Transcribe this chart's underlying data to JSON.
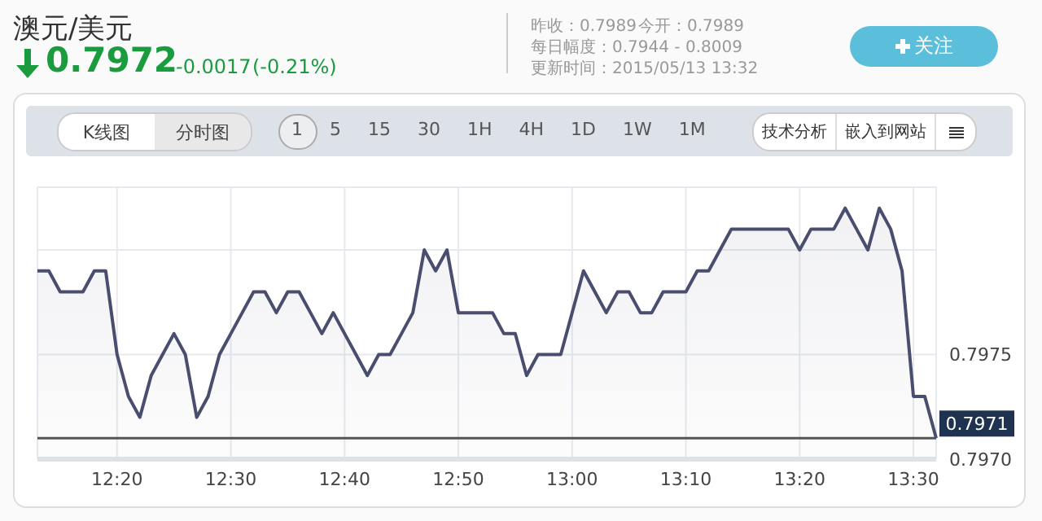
{
  "chart_data": {
    "type": "area",
    "title": "澳元/美元",
    "annotations": [
      "0.7972",
      "-0.0017",
      "(-0.21%)",
      "昨收：0.7989",
      "今开：0.7989",
      "每日幅度：0.7944 - 0.8009",
      "更新时间：2015/05/13 13:32",
      "关注",
      "K线图",
      "分时图",
      "1 5 15 30 1H 4H 1D 1W 1M",
      "技术分析",
      "嵌入到网站"
    ],
    "categories": [
      null,
      null,
      null,
      null,
      null,
      null,
      null,
      "12:20",
      null,
      null,
      null,
      null,
      null,
      null,
      null,
      null,
      null,
      "12:30",
      null,
      null,
      null,
      null,
      null,
      null,
      null,
      null,
      null,
      "12:40",
      null,
      null,
      null,
      null,
      null,
      null,
      null,
      null,
      null,
      "12:50",
      null,
      null,
      null,
      null,
      null,
      null,
      null,
      null,
      null,
      "13:00",
      null,
      null,
      null,
      null,
      null,
      null,
      null,
      null,
      null,
      "13:10",
      null,
      null,
      null,
      null,
      null,
      null,
      null,
      null,
      null,
      "13:20",
      null,
      null,
      null,
      null,
      null,
      null,
      null,
      null,
      null,
      "13:30",
      null,
      null
    ],
    "values": [
      0.7979,
      0.7979,
      0.7978,
      0.7978,
      0.7978,
      0.7979,
      0.7979,
      0.7975,
      0.7973,
      0.7972,
      0.7974,
      0.7975,
      0.7976,
      0.7975,
      0.7972,
      0.7973,
      0.7975,
      0.7976,
      0.7977,
      0.7978,
      0.7978,
      0.7977,
      0.7978,
      0.7978,
      0.7977,
      0.7976,
      0.7977,
      0.7976,
      0.7975,
      0.7974,
      0.7975,
      0.7975,
      0.7976,
      0.7977,
      0.798,
      0.7979,
      0.798,
      0.7977,
      0.7977,
      0.7977,
      0.7977,
      0.7976,
      0.7976,
      0.7974,
      0.7975,
      0.7975,
      0.7975,
      0.7977,
      0.7979,
      0.7978,
      0.7977,
      0.7978,
      0.7978,
      0.7977,
      0.7977,
      0.7978,
      0.7978,
      0.7978,
      0.7979,
      0.7979,
      0.798,
      0.7981,
      0.7981,
      0.7981,
      0.7981,
      0.7981,
      0.7981,
      0.798,
      0.7981,
      0.7981,
      0.7981,
      0.7982,
      0.7981,
      0.798,
      0.7982,
      0.7981,
      0.7979,
      0.7973,
      0.7973,
      0.7971
    ],
    "color": "#4a4e6e",
    "ylim": [
      0.797,
      0.7983
    ],
    "yticks": [
      {
        "value": 0.797,
        "label": "0.7970"
      },
      0.7975,
      {
        "value": 0.798,
        "label": null
      }
    ],
    "grid": true,
    "ref_lines": [
      {
        "axis": "y",
        "value": 0.7971,
        "label": "0.7971",
        "color": "#555555"
      }
    ]
  }
}
